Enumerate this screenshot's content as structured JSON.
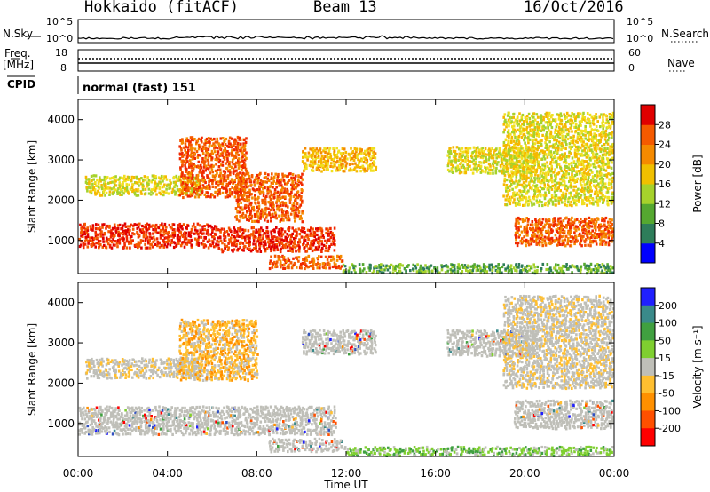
{
  "header": {
    "title": "Hokkaido (fitACF)",
    "beam": "Beam 13",
    "date": "16/Oct/2016"
  },
  "side_labels": {
    "nsky": "N.Sky",
    "nsearch": "N.Search",
    "freq": "Freq.",
    "freq_unit": "[MHz]",
    "nave": "Nave",
    "cpid": "CPID",
    "cpid_value": "normal (fast) 151"
  },
  "noise_ticks": {
    "top": "10^5",
    "bottom": "10^0"
  },
  "freq_ticks": [
    "18",
    "8"
  ],
  "nave_ticks": [
    "60",
    "0"
  ],
  "colors": {
    "power": [
      "#0000ff",
      "#1f50c8",
      "#2e7d5a",
      "#55a830",
      "#a6d22b",
      "#f0e020",
      "#f5b800",
      "#f58a00",
      "#f55a00",
      "#f02800",
      "#e00000"
    ],
    "velocity_low_to_high": [
      "#ff0000",
      "#ff5000",
      "#ff9000",
      "#ffbf30",
      "#bfbfb8",
      "#bfbfb8",
      "#7fcf30",
      "#40a040",
      "#3a8a8a",
      "#3050c0",
      "#2020ff"
    ],
    "ground_scatter": "#bfbfb8"
  },
  "chart_data": [
    {
      "type": "heatmap",
      "panel": "power",
      "ylabel": "Slant Range [km]",
      "colorbar_label": "Power [dB]",
      "colorbar_ticks": [
        "4",
        "8",
        "12",
        "16",
        "20",
        "24",
        "28"
      ],
      "y_ticks": [
        "1000",
        "2000",
        "3000",
        "4000"
      ],
      "ylim": [
        180,
        4500
      ],
      "regions": [
        {
          "t0": 0.0,
          "t1": 6.2,
          "r0": 850,
          "r1": 1450,
          "level": 9
        },
        {
          "t0": 6.2,
          "t1": 11.5,
          "r0": 750,
          "r1": 1350,
          "level": 9
        },
        {
          "t0": 8.5,
          "t1": 11.8,
          "r0": 330,
          "r1": 650,
          "level": 8
        },
        {
          "t0": 0.3,
          "t1": 5.5,
          "r0": 2150,
          "r1": 2650,
          "level": 5
        },
        {
          "t0": 4.5,
          "t1": 7.5,
          "r0": 2100,
          "r1": 3600,
          "level": 8
        },
        {
          "t0": 7.0,
          "t1": 10.0,
          "r0": 1500,
          "r1": 2700,
          "level": 8
        },
        {
          "t0": 10.0,
          "t1": 13.3,
          "r0": 2750,
          "r1": 3350,
          "level": 6
        },
        {
          "t0": 16.5,
          "t1": 20.5,
          "r0": 2700,
          "r1": 3350,
          "level": 5
        },
        {
          "t0": 19.5,
          "t1": 24.0,
          "r0": 900,
          "r1": 1600,
          "level": 8
        },
        {
          "t0": 19.0,
          "t1": 24.0,
          "r0": 1900,
          "r1": 4200,
          "level": 5
        },
        {
          "t0": 11.8,
          "t1": 24.0,
          "r0": 200,
          "r1": 450,
          "level": 3
        }
      ]
    },
    {
      "type": "heatmap",
      "panel": "velocity",
      "ylabel": "Slant Range [km]",
      "colorbar_label": "Velocity [m s⁻¹]",
      "colorbar_ticks": [
        "200",
        "100",
        "50",
        "15",
        "-15",
        "-50",
        "-100",
        "-200"
      ],
      "y_ticks": [
        "1000",
        "2000",
        "3000",
        "4000"
      ],
      "ylim": [
        180,
        4500
      ],
      "regions": [
        {
          "t0": 0.0,
          "t1": 11.5,
          "r0": 750,
          "r1": 1450,
          "level": 5
        },
        {
          "t0": 8.5,
          "t1": 11.8,
          "r0": 330,
          "r1": 650,
          "level": 5
        },
        {
          "t0": 0.3,
          "t1": 5.5,
          "r0": 2150,
          "r1": 2650,
          "level": 4
        },
        {
          "t0": 4.5,
          "t1": 8.0,
          "r0": 2100,
          "r1": 3600,
          "level": 3
        },
        {
          "t0": 10.0,
          "t1": 13.3,
          "r0": 2750,
          "r1": 3350,
          "level": 5
        },
        {
          "t0": 16.5,
          "t1": 20.5,
          "r0": 2700,
          "r1": 3350,
          "level": 5
        },
        {
          "t0": 19.5,
          "t1": 24.0,
          "r0": 900,
          "r1": 1600,
          "level": 5
        },
        {
          "t0": 19.0,
          "t1": 24.0,
          "r0": 1900,
          "r1": 4200,
          "level": 4
        },
        {
          "t0": 11.8,
          "t1": 24.0,
          "r0": 200,
          "r1": 450,
          "level": 6
        }
      ]
    }
  ],
  "time_axis": {
    "label": "Time UT",
    "ticks": [
      "00:00",
      "04:00",
      "08:00",
      "12:00",
      "16:00",
      "20:00",
      "00:00"
    ],
    "range_hours": [
      0,
      24
    ]
  }
}
